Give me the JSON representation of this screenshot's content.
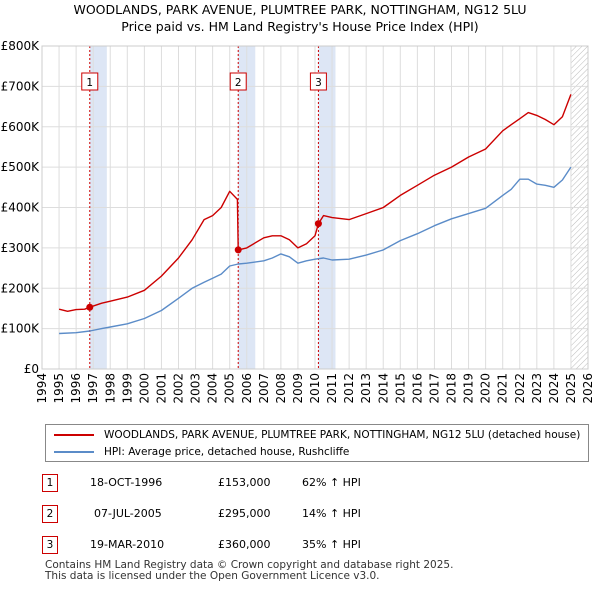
{
  "title_line1": "WOODLANDS, PARK AVENUE, PLUMTREE PARK, NOTTINGHAM, NG12 5LU",
  "title_line2": "Price paid vs. HM Land Registry's House Price Index (HPI)",
  "legend": {
    "property_label": "WOODLANDS, PARK AVENUE, PLUMTREE PARK, NOTTINGHAM, NG12 5LU (detached house)",
    "hpi_label": "HPI: Average price, detached house, Rushcliffe"
  },
  "transactions": [
    {
      "num": "1",
      "date": "18-OCT-1996",
      "price": "£153,000",
      "hpi": "62% ↑ HPI"
    },
    {
      "num": "2",
      "date": "07-JUL-2005",
      "price": "£295,000",
      "hpi": "14% ↑ HPI"
    },
    {
      "num": "3",
      "date": "19-MAR-2010",
      "price": "£360,000",
      "hpi": "35% ↑ HPI"
    }
  ],
  "footer_line1": "Contains HM Land Registry data © Crown copyright and database right 2025.",
  "footer_line2": "This data is licensed under the Open Government Licence v3.0.",
  "colors": {
    "property": "#cc0000",
    "hpi": "#5b8cc8",
    "sale_band": "#dde6f5",
    "grid": "#dddddd"
  },
  "chart_data": {
    "type": "line",
    "xlim": [
      1994,
      2026
    ],
    "ylim": [
      0,
      800000
    ],
    "x_ticks": [
      "1994",
      "1995",
      "1996",
      "1997",
      "1998",
      "1999",
      "2000",
      "2001",
      "2002",
      "2003",
      "2004",
      "2005",
      "2006",
      "2007",
      "2008",
      "2009",
      "2010",
      "2011",
      "2012",
      "2013",
      "2014",
      "2015",
      "2016",
      "2017",
      "2018",
      "2019",
      "2020",
      "2021",
      "2022",
      "2023",
      "2024",
      "2025",
      "2026"
    ],
    "y_ticks": [
      {
        "value": 0,
        "label": "£0"
      },
      {
        "value": 100000,
        "label": "£100K"
      },
      {
        "value": 200000,
        "label": "£200K"
      },
      {
        "value": 300000,
        "label": "£300K"
      },
      {
        "value": 400000,
        "label": "£400K"
      },
      {
        "value": 500000,
        "label": "£500K"
      },
      {
        "value": 600000,
        "label": "£600K"
      },
      {
        "value": 700000,
        "label": "£700K"
      },
      {
        "value": 800000,
        "label": "£800K"
      }
    ],
    "hatched_from_year": 2025.0,
    "series": [
      {
        "name": "WOODLANDS, PARK AVENUE, PLUMTREE PARK, NOTTINGHAM, NG12 5LU (detached house)",
        "x": [
          1995.0,
          1995.5,
          1996.0,
          1996.5,
          1996.8,
          1997.5,
          1998.0,
          1999.0,
          2000.0,
          2001.0,
          2002.0,
          2002.8,
          2003.5,
          2004.0,
          2004.5,
          2005.0,
          2005.45,
          2005.5,
          2006.0,
          2007.0,
          2007.5,
          2008.0,
          2008.5,
          2009.0,
          2009.5,
          2010.0,
          2010.2,
          2010.5,
          2011.0,
          2012.0,
          2013.0,
          2014.0,
          2015.0,
          2016.0,
          2017.0,
          2018.0,
          2019.0,
          2020.0,
          2021.0,
          2021.5,
          2022.0,
          2022.5,
          2023.0,
          2023.5,
          2024.0,
          2024.5,
          2025.0
        ],
        "values": [
          148000,
          143000,
          147000,
          148000,
          153000,
          163000,
          168000,
          178000,
          195000,
          230000,
          275000,
          320000,
          370000,
          380000,
          400000,
          440000,
          420000,
          295000,
          300000,
          325000,
          330000,
          330000,
          320000,
          300000,
          310000,
          330000,
          360000,
          380000,
          375000,
          370000,
          385000,
          400000,
          430000,
          455000,
          480000,
          500000,
          525000,
          545000,
          590000,
          605000,
          620000,
          635000,
          628000,
          618000,
          605000,
          625000,
          680000
        ]
      },
      {
        "name": "HPI: Average price, detached house, Rushcliffe",
        "x": [
          1995.0,
          1996.0,
          1996.8,
          1997.5,
          1998.0,
          1999.0,
          2000.0,
          2001.0,
          2002.0,
          2002.8,
          2003.5,
          2004.0,
          2004.5,
          2005.0,
          2005.5,
          2006.0,
          2007.0,
          2007.5,
          2008.0,
          2008.5,
          2009.0,
          2009.5,
          2010.0,
          2010.5,
          2011.0,
          2012.0,
          2013.0,
          2014.0,
          2015.0,
          2016.0,
          2017.0,
          2018.0,
          2019.0,
          2020.0,
          2021.0,
          2021.5,
          2022.0,
          2022.5,
          2023.0,
          2023.5,
          2024.0,
          2024.5,
          2025.0
        ],
        "values": [
          88000,
          90000,
          94000,
          100000,
          104000,
          112000,
          125000,
          145000,
          175000,
          200000,
          215000,
          225000,
          235000,
          255000,
          260000,
          262000,
          268000,
          275000,
          285000,
          278000,
          262000,
          268000,
          272000,
          275000,
          270000,
          272000,
          282000,
          295000,
          318000,
          335000,
          355000,
          372000,
          385000,
          398000,
          430000,
          445000,
          470000,
          470000,
          458000,
          455000,
          450000,
          468000,
          500000
        ]
      }
    ],
    "sale_markers": [
      {
        "label": "1",
        "x": 1996.8,
        "value": 153000
      },
      {
        "label": "2",
        "x": 2005.5,
        "value": 295000
      },
      {
        "label": "3",
        "x": 2010.2,
        "value": 360000
      }
    ]
  }
}
